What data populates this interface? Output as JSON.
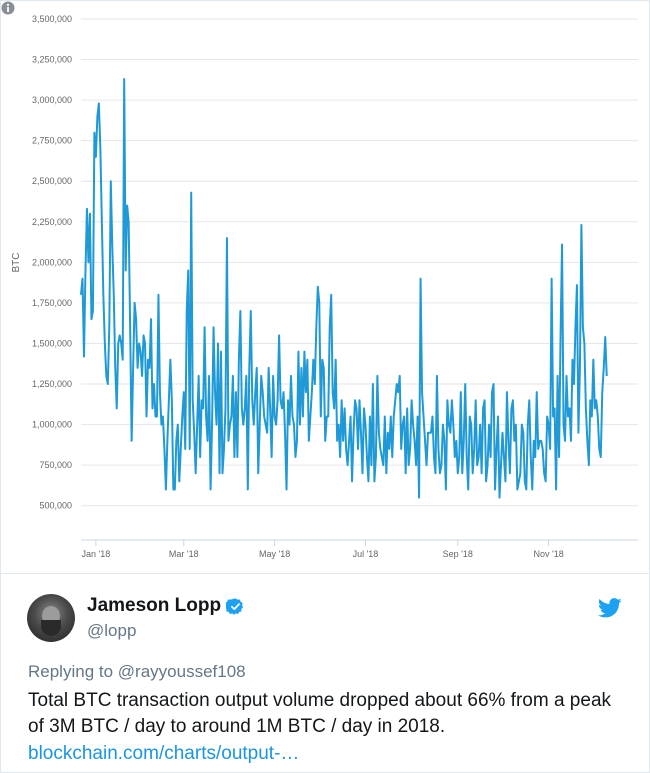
{
  "chart_data": {
    "type": "line",
    "ylabel": "BTC",
    "ylim": [
      375000,
      3500000
    ],
    "y_ticks": [
      "3,500,000",
      "3,250,000",
      "3,000,000",
      "2,750,000",
      "2,500,000",
      "2,250,000",
      "2,000,000",
      "1,750,000",
      "1,500,000",
      "1,250,000",
      "1,000,000",
      "750,000",
      "500,000"
    ],
    "y_tick_values": [
      3500000,
      3250000,
      3000000,
      2750000,
      2500000,
      2250000,
      2000000,
      1750000,
      1500000,
      1250000,
      1000000,
      750000,
      500000
    ],
    "x_ticks": [
      "Jan '18",
      "Mar '18",
      "May '18",
      "Jul '18",
      "Sep '18",
      "Nov '18"
    ],
    "x_tick_values": [
      "2018-01-01",
      "2018-03-01",
      "2018-05-01",
      "2018-07-01",
      "2018-09-01",
      "2018-11-01"
    ],
    "x_range": [
      "2017-12-22",
      "2018-12-31"
    ],
    "grid": true,
    "line_color": "#1f9ad6",
    "series": [
      {
        "x_start": "2017-12-22",
        "step_days": 1,
        "values": [
          1800000,
          1900000,
          1420000,
          1950000,
          2330000,
          2000000,
          2300000,
          1650000,
          1700000,
          2800000,
          2650000,
          2900000,
          2980000,
          2700000,
          2250000,
          1800000,
          1500000,
          1300000,
          1250000,
          1600000,
          2500000,
          2100000,
          1800000,
          1350000,
          1100000,
          1500000,
          1550000,
          1500000,
          1400000,
          3130000,
          1950000,
          2350000,
          2250000,
          1600000,
          900000,
          1350000,
          1750000,
          1650000,
          1350000,
          1500000,
          1450000,
          1300000,
          1550000,
          1500000,
          1050000,
          1400000,
          1350000,
          1650000,
          1100000,
          1250000,
          1050000,
          1050000,
          1800000,
          1200000,
          1000000,
          1050000,
          850000,
          600000,
          900000,
          1150000,
          1400000,
          1150000,
          600000,
          600000,
          900000,
          1000000,
          650000,
          850000,
          1050000,
          1200000,
          850000,
          1700000,
          1950000,
          850000,
          2430000,
          1150000,
          950000,
          700000,
          1000000,
          1300000,
          800000,
          1150000,
          1100000,
          1600000,
          1050000,
          900000,
          1300000,
          600000,
          1000000,
          1600000,
          1200000,
          1000000,
          1500000,
          700000,
          1450000,
          700000,
          850000,
          1100000,
          2150000,
          900000,
          1000000,
          1050000,
          1300000,
          800000,
          1200000,
          800000,
          1400000,
          1700000,
          1100000,
          1000000,
          1100000,
          1300000,
          600000,
          1350000,
          1700000,
          1150000,
          1000000,
          1200000,
          1350000,
          700000,
          1000000,
          1300000,
          1200000,
          1050000,
          1000000,
          950000,
          1350000,
          1100000,
          800000,
          1300000,
          1050000,
          1000000,
          1150000,
          1550000,
          1150000,
          1100000,
          1200000,
          950000,
          600000,
          1150000,
          1000000,
          1300000,
          1050000,
          1000000,
          800000,
          900000,
          1450000,
          1000000,
          1350000,
          1050000,
          1450000,
          1200000,
          1400000,
          900000,
          1050000,
          1200000,
          1400000,
          1250000,
          1600000,
          1850000,
          1750000,
          1050000,
          1400000,
          1350000,
          900000,
          1050000,
          1050000,
          1600000,
          1800000,
          1200000,
          1100000,
          1400000,
          900000,
          1000000,
          800000,
          1150000,
          900000,
          1100000,
          850000,
          750000,
          900000,
          1050000,
          650000,
          950000,
          1150000,
          1100000,
          850000,
          1150000,
          950000,
          700000,
          1100000,
          1000000,
          800000,
          650000,
          1050000,
          750000,
          1250000,
          650000,
          800000,
          1300000,
          950000,
          850000,
          800000,
          750000,
          1050000,
          700000,
          950000,
          850000,
          1050000,
          800000,
          1050000,
          1150000,
          1250000,
          1200000,
          1300000,
          850000,
          1000000,
          1050000,
          700000,
          1100000,
          750000,
          850000,
          1150000,
          1000000,
          900000,
          750000,
          1050000,
          550000,
          1900000,
          1200000,
          1050000,
          900000,
          750000,
          950000,
          950000,
          950000,
          1050000,
          800000,
          700000,
          1300000,
          850000,
          700000,
          750000,
          1000000,
          900000,
          600000,
          1150000,
          1000000,
          950000,
          1150000,
          1000000,
          800000,
          900000,
          700000,
          800000,
          1200000,
          700000,
          900000,
          1250000,
          800000,
          600000,
          1050000,
          1000000,
          700000,
          850000,
          1150000,
          750000,
          800000,
          1000000,
          700000,
          1100000,
          1150000,
          650000,
          750000,
          1000000,
          800000,
          1200000,
          1250000,
          600000,
          850000,
          1050000,
          550000,
          750000,
          950000,
          800000,
          650000,
          1200000,
          900000,
          700000,
          1100000,
          1150000,
          900000,
          1000000,
          600000,
          650000,
          700000,
          1000000,
          950000,
          650000,
          600000,
          1000000,
          1150000,
          800000,
          600000,
          900000,
          800000,
          1200000,
          850000,
          900000,
          900000,
          850000,
          700000,
          650000,
          1050000,
          1000000,
          850000,
          1900000,
          1050000,
          1100000,
          600000,
          1300000,
          800000,
          1550000,
          2110000,
          1000000,
          900000,
          1300000,
          1050000,
          1100000,
          900000,
          1400000,
          1250000,
          1600000,
          1860000,
          950000,
          1350000,
          2230000,
          1600000,
          1500000,
          1100000,
          900000,
          750000,
          1150000,
          1050000,
          1400000,
          1100000,
          1150000,
          1050000,
          850000,
          800000,
          1200000,
          1350000,
          1540000,
          1300000
        ]
      }
    ]
  },
  "chart": {
    "info_icon": "info-circle-icon"
  },
  "tweet": {
    "author_name": "Jameson Lopp",
    "author_handle": "@lopp",
    "verified_icon": "verified-badge-icon",
    "brand_icon": "twitter-bird-icon",
    "reply_prefix": "Replying to",
    "reply_mention": "@rayyoussef108",
    "text": "Total BTC transaction output volume dropped about 66% from a peak of 3M BTC / day to around 1M BTC / day in 2018.",
    "link": "blockchain.com/charts/output-…",
    "brand_color": "#1da1f2",
    "link_color": "#1b95e0"
  }
}
